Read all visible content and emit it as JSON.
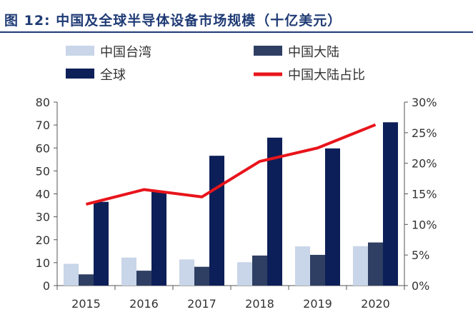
{
  "figure_title": "图 12:  中国及全球半导体设备市场规模（十亿美元）",
  "chart_data": {
    "type": "bar",
    "categories": [
      "2015",
      "2016",
      "2017",
      "2018",
      "2019",
      "2020"
    ],
    "series": [
      {
        "name": "中国台湾",
        "kind": "bar",
        "axis": "left",
        "color": "#c9d5e8",
        "values": [
          9.5,
          12.2,
          11.4,
          10.2,
          17.1,
          17.2
        ]
      },
      {
        "name": "中国大陆",
        "kind": "bar",
        "axis": "left",
        "color": "#2e3f63",
        "values": [
          4.9,
          6.5,
          8.2,
          13.1,
          13.4,
          18.8
        ]
      },
      {
        "name": "全球",
        "kind": "bar",
        "axis": "left",
        "color": "#0d1f58",
        "values": [
          36.5,
          41.2,
          56.6,
          64.5,
          59.8,
          71.2
        ]
      },
      {
        "name": "中国大陆占比",
        "kind": "line",
        "axis": "right",
        "color": "#e8141b",
        "values": [
          0.133,
          0.157,
          0.145,
          0.203,
          0.225,
          0.263
        ]
      }
    ],
    "y_left": {
      "min": 0,
      "max": 80,
      "step": 10,
      "ticks": [
        "0",
        "10",
        "20",
        "30",
        "40",
        "50",
        "60",
        "70",
        "80"
      ]
    },
    "y_right": {
      "min": 0,
      "max": 0.3,
      "step": 0.05,
      "ticks": [
        "0%",
        "5%",
        "10%",
        "15%",
        "20%",
        "25%",
        "30%"
      ]
    },
    "grid": false,
    "legend_position": "top"
  }
}
